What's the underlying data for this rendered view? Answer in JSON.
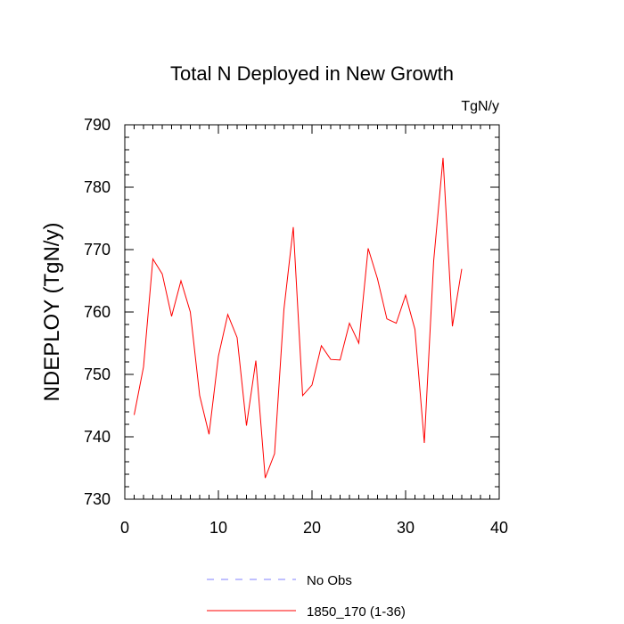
{
  "chart_data": {
    "type": "line",
    "title": "Total N Deployed in New Growth",
    "units_label": "TgN/y",
    "xlabel": "",
    "ylabel": "NDEPLOY  (TgN/y)",
    "xlim": [
      0,
      40
    ],
    "ylim": [
      730,
      790
    ],
    "xticks": [
      0,
      10,
      20,
      30,
      40
    ],
    "yticks": [
      730,
      740,
      750,
      760,
      770,
      780,
      790
    ],
    "series": [
      {
        "name": "1850_170 (1-36)",
        "color": "#ff0000",
        "style": "solid",
        "x": [
          1,
          2,
          3,
          4,
          5,
          6,
          7,
          8,
          9,
          10,
          11,
          12,
          13,
          14,
          15,
          16,
          17,
          18,
          19,
          20,
          21,
          22,
          23,
          24,
          25,
          26,
          27,
          28,
          29,
          30,
          31,
          32,
          33,
          34,
          35,
          36
        ],
        "values": [
          743.5,
          751.2,
          768.5,
          766.1,
          759.3,
          765.0,
          760.0,
          746.6,
          740.4,
          752.9,
          759.6,
          755.9,
          741.8,
          752.2,
          733.4,
          737.3,
          760.4,
          773.6,
          746.6,
          748.3,
          754.6,
          752.4,
          752.3,
          758.2,
          755.0,
          770.2,
          765.3,
          758.9,
          758.2,
          762.7,
          757.2,
          739.0,
          768.2,
          784.7,
          757.7,
          766.9
        ]
      }
    ],
    "legend": [
      {
        "label": "No Obs",
        "color": "#8080ff",
        "style": "dashed"
      },
      {
        "label": "1850_170 (1-36)",
        "color": "#ff0000",
        "style": "solid"
      }
    ],
    "legend_position": "bottom"
  }
}
